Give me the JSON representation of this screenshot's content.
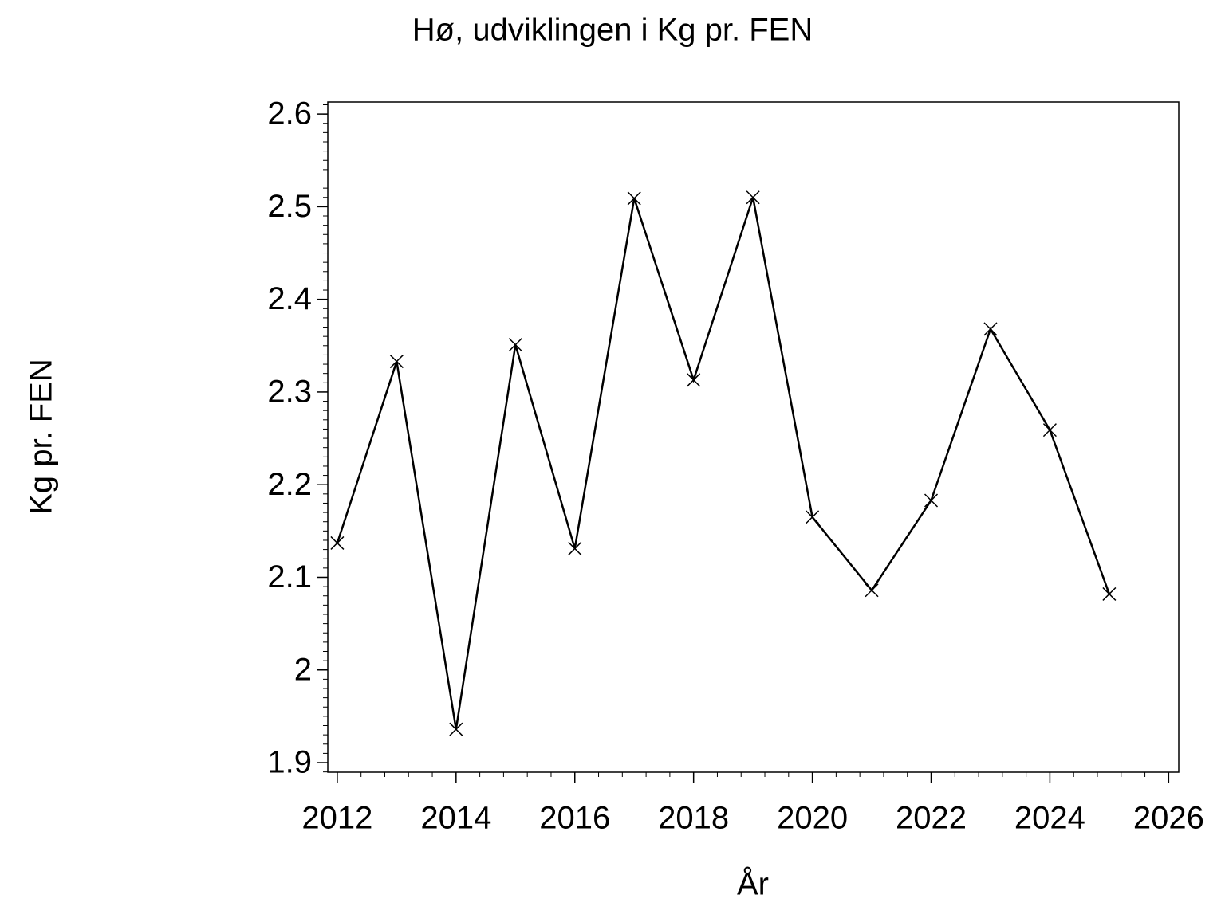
{
  "chart_data": {
    "type": "line",
    "title": "Hø, udviklingen i Kg pr. FEN",
    "x_label": "År",
    "y_label": "Kg pr. FEN",
    "x": [
      2012,
      2013,
      2014,
      2015,
      2016,
      2017,
      2018,
      2019,
      2020,
      2021,
      2022,
      2023,
      2024,
      2025
    ],
    "values": [
      2.137,
      2.333,
      1.936,
      2.351,
      2.131,
      2.509,
      2.313,
      2.51,
      2.165,
      2.086,
      2.183,
      2.368,
      2.259,
      2.082
    ],
    "color": "#000000",
    "xlim": [
      2011.84,
      2026.17
    ],
    "xticks": [
      2012,
      2014,
      2016,
      2018,
      2020,
      2022,
      2024,
      2026
    ],
    "ylim": [
      1.8897,
      2.613
    ],
    "yticks": [
      1.9,
      2,
      2.1,
      2.2,
      2.3,
      2.4,
      2.5,
      2.6
    ]
  }
}
